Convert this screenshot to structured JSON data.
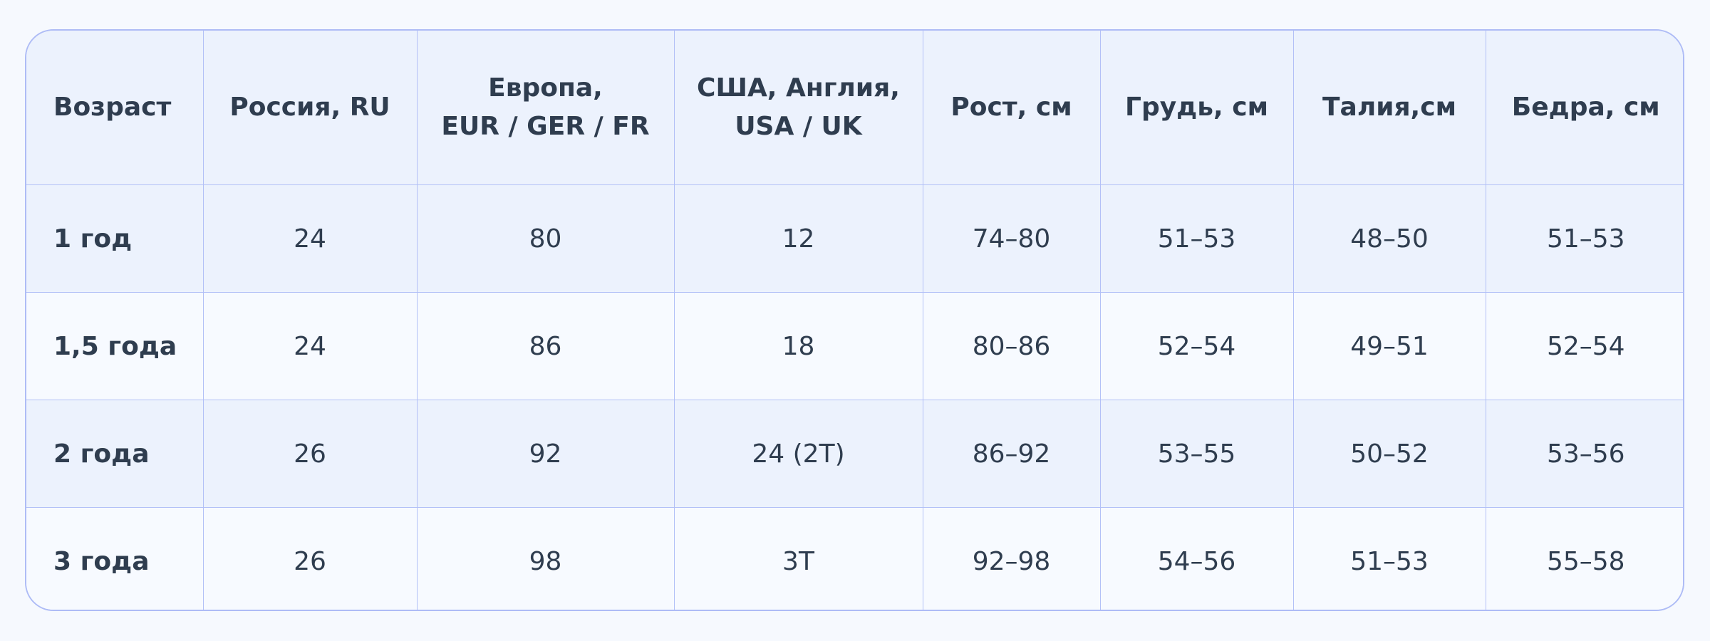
{
  "table": {
    "headers": [
      {
        "lines": [
          "Возраст"
        ]
      },
      {
        "lines": [
          "Россия, RU"
        ]
      },
      {
        "lines": [
          "Европа,",
          "EUR / GER / FR"
        ]
      },
      {
        "lines": [
          "США, Англия,",
          "USA / UK"
        ]
      },
      {
        "lines": [
          "Рост, см"
        ]
      },
      {
        "lines": [
          "Грудь, см"
        ]
      },
      {
        "lines": [
          "Талия,см"
        ]
      },
      {
        "lines": [
          "Бедра, см"
        ]
      }
    ],
    "rows": [
      [
        "1 год",
        "24",
        "80",
        "12",
        "74–80",
        "51–53",
        "48–50",
        "51–53"
      ],
      [
        "1,5 года",
        "24",
        "86",
        "18",
        "80–86",
        "52–54",
        "49–51",
        "52–54"
      ],
      [
        "2 года",
        "26",
        "92",
        "24 (2T)",
        "86–92",
        "53–55",
        "50–52",
        "53–56"
      ],
      [
        "3 года",
        "26",
        "98",
        "3T",
        "92–98",
        "54–56",
        "51–53",
        "55–58"
      ]
    ]
  },
  "colors": {
    "border": "#aebcf6",
    "header_bg": "#ecf2fd",
    "row_alt_bg": "#f7faff",
    "text": "#2f3d4f"
  }
}
